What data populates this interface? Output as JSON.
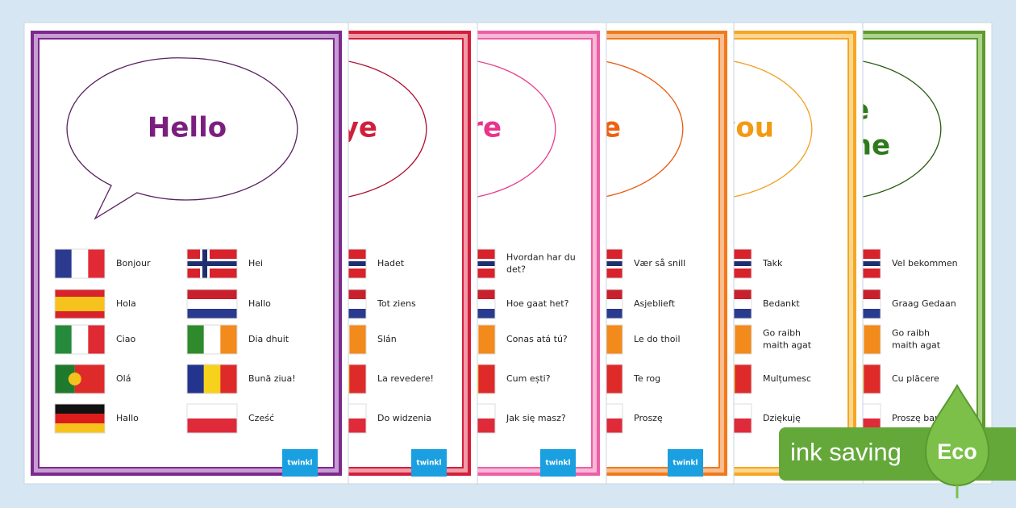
{
  "posters": [
    {
      "title": [
        "Hello"
      ],
      "left": [
        [
          "Bonjour"
        ],
        [
          "Hola"
        ],
        [
          "Ciao"
        ],
        [
          "Olá"
        ],
        [
          "Hallo"
        ]
      ],
      "right": [
        [
          "Hei"
        ],
        [
          "Hallo"
        ],
        [
          "Dia dhuit"
        ],
        [
          "Bună ziua!"
        ],
        [
          "Cześć"
        ]
      ]
    },
    {
      "title": [
        "ye"
      ],
      "right": [
        [
          "Hadet"
        ],
        [
          "Tot ziens"
        ],
        [
          "Slán"
        ],
        [
          "La revedere!"
        ],
        [
          "Do widzenia"
        ]
      ]
    },
    {
      "title": [
        "re"
      ],
      "right": [
        [
          "Hvordan har du",
          "det?"
        ],
        [
          "Hoe gaat het?"
        ],
        [
          "Conas atá tú?"
        ],
        [
          "Cum ești?"
        ],
        [
          "Jak się masz?"
        ]
      ]
    },
    {
      "title": [
        "e"
      ],
      "right": [
        [
          "Vær så snill"
        ],
        [
          "Asjeblieft"
        ],
        [
          "Le do thoil"
        ],
        [
          "Te rog"
        ],
        [
          "Proszę"
        ]
      ]
    },
    {
      "title": [
        "you"
      ],
      "right": [
        [
          "Takk"
        ],
        [
          "Bedankt"
        ],
        [
          "Go raibh",
          "maith agat"
        ],
        [
          "Mulțumesc"
        ],
        [
          "Dziękuję"
        ]
      ]
    },
    {
      "title": [
        "e",
        "ne"
      ],
      "right": [
        [
          "Vel bekommen"
        ],
        [
          "Graag Gedaan"
        ],
        [
          "Go raibh",
          "maith agat"
        ],
        [
          "Cu plăcere"
        ],
        [
          "Proszę bardz"
        ]
      ]
    }
  ],
  "logo": "twinkl",
  "badge": {
    "text": "ink saving",
    "eco": "Eco"
  }
}
